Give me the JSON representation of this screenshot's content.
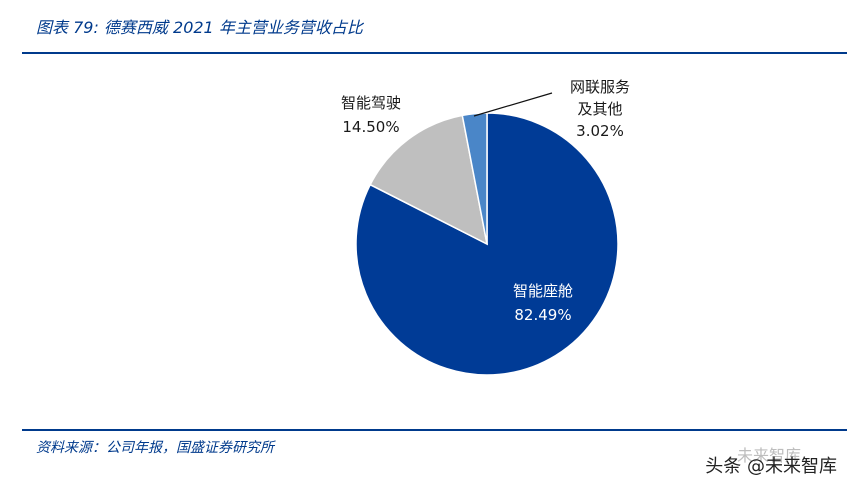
{
  "header": {
    "title": "图表 79:  德赛西威 2021 年主营业务营收占比"
  },
  "footer": {
    "source": "资料来源：公司年报，国盛证券研究所"
  },
  "watermark": {
    "text": "头条 @未来智库",
    "ghost": "未来智库"
  },
  "chart_data": {
    "type": "pie",
    "slices": [
      {
        "label": "智能座舱",
        "value": 82.49,
        "display": "82.49%",
        "color": "#003b96",
        "label_color": "#ffffff"
      },
      {
        "label": "智能驾驶",
        "value": 14.5,
        "display": "14.50%",
        "color": "#bfbfbf",
        "label_color": "#1a1a1a"
      },
      {
        "label": "网联服务及其他",
        "label_lines": [
          "网联服务",
          "及其他"
        ],
        "value": 3.02,
        "display": "3.02%",
        "color": "#4a86c8",
        "label_color": "#1a1a1a"
      }
    ]
  }
}
